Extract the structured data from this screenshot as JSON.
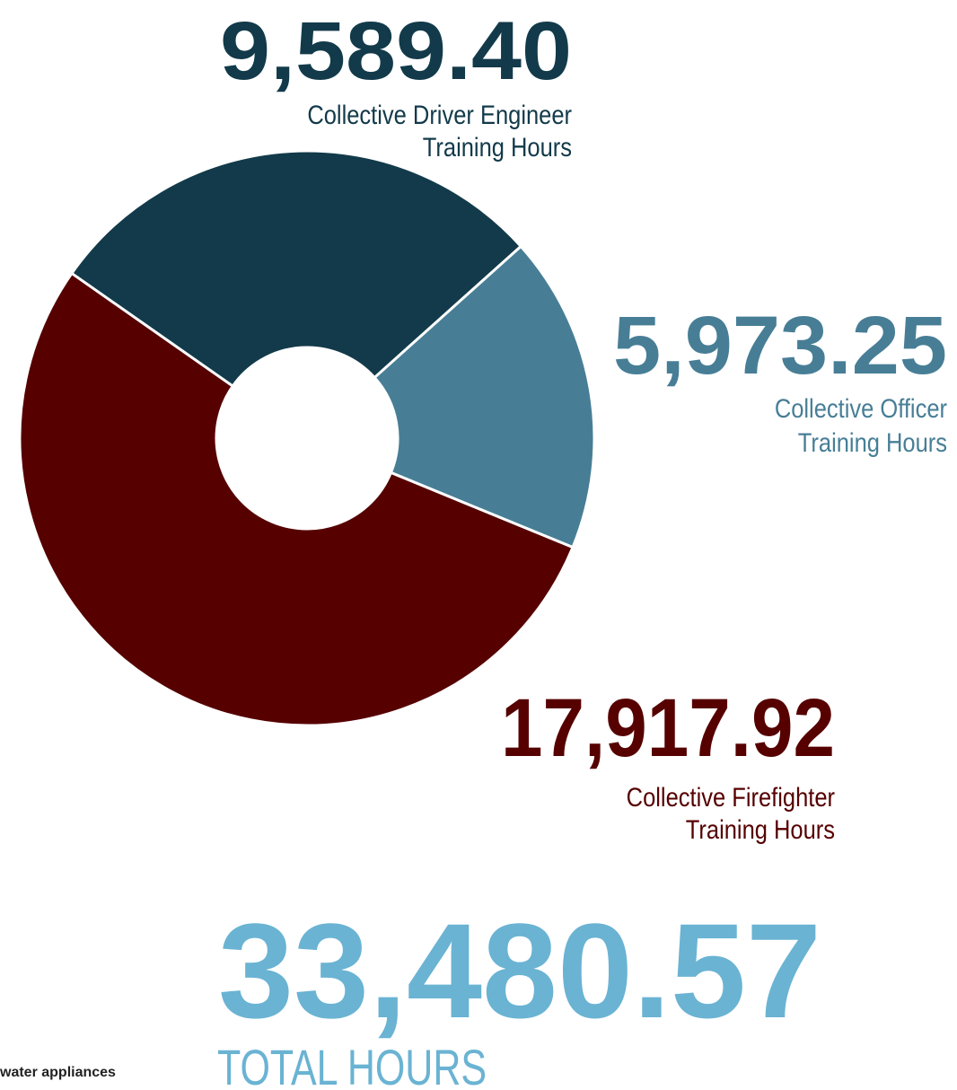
{
  "chart_data": {
    "type": "donut",
    "categories": [
      [
        "Collective Driver Engineer",
        "Training Hours"
      ],
      [
        "Collective Officer",
        "Training Hours"
      ],
      [
        "Collective Firefighter",
        "Training Hours"
      ]
    ],
    "values": [
      9589.4,
      5973.25,
      17917.92
    ],
    "value_labels": [
      "9,589.40",
      "5,973.25",
      "17,917.92"
    ],
    "colors": [
      "#123a4a",
      "#477e96",
      "#560000"
    ],
    "total": {
      "value": 33480.57,
      "label": "33,480.57",
      "caption": "TOTAL HOURS",
      "color": "#6ab3d3"
    },
    "footnote": "water appliances"
  }
}
